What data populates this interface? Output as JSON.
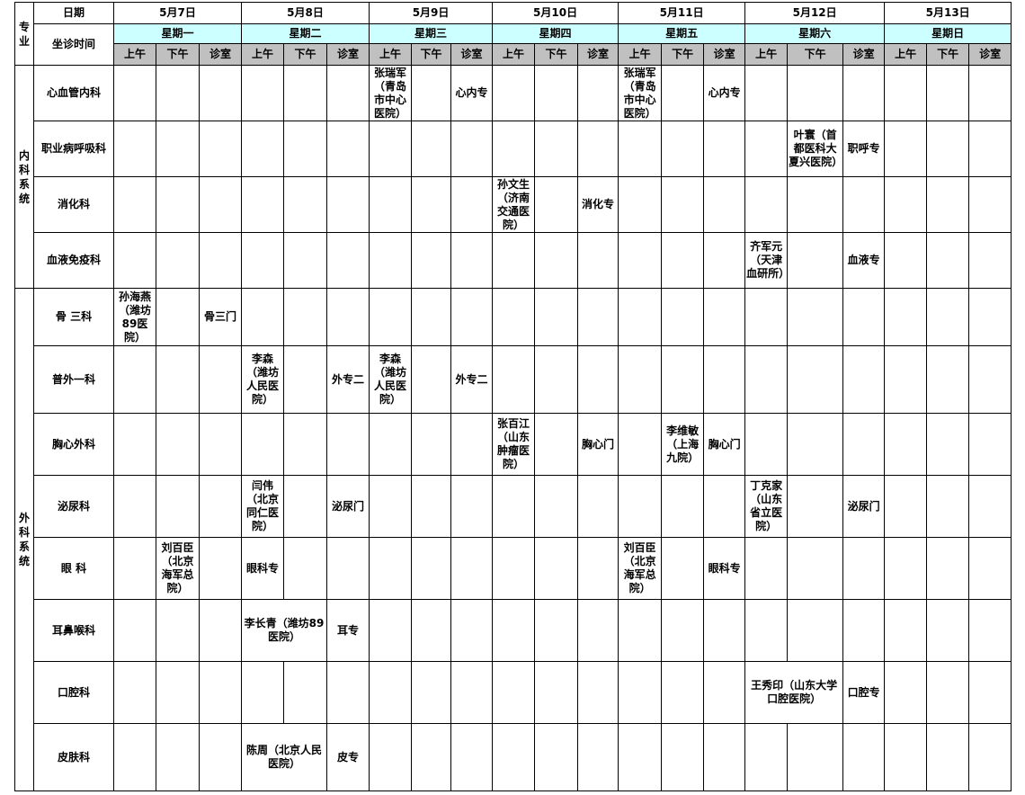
{
  "header": {
    "specialty": "专业",
    "date_label": "日期",
    "time_label": "坐诊时间",
    "subcols": [
      "上午",
      "下午",
      "诊室"
    ],
    "days": [
      {
        "date": "5月7日",
        "weekday": "星期一"
      },
      {
        "date": "5月8日",
        "weekday": "星期二"
      },
      {
        "date": "5月9日",
        "weekday": "星期三"
      },
      {
        "date": "5月10日",
        "weekday": "星期四"
      },
      {
        "date": "5月11日",
        "weekday": "星期五"
      },
      {
        "date": "5月12日",
        "weekday": "星期六"
      },
      {
        "date": "5月13日",
        "weekday": "星期日"
      }
    ]
  },
  "groups": [
    {
      "name": "内科系统",
      "depts": [
        {
          "name": "心血管内科",
          "cells": [
            "",
            "",
            "",
            "",
            "",
            "",
            "张瑞军（青岛市中心医院）",
            "",
            "心内专",
            "",
            "",
            "",
            "张瑞军（青岛市中心医院）",
            "",
            "心内专",
            "",
            "",
            "",
            "",
            "",
            ""
          ]
        },
        {
          "name": "职业病呼吸科",
          "cells": [
            "",
            "",
            "",
            "",
            "",
            "",
            "",
            "",
            "",
            "",
            "",
            "",
            "",
            "",
            "",
            "",
            "叶寰（首都医科大夏兴医院）",
            "职呼专",
            "",
            "",
            ""
          ]
        },
        {
          "name": "消化科",
          "cells": [
            "",
            "",
            "",
            "",
            "",
            "",
            "",
            "",
            "",
            "孙文生（济南交通医院）",
            "",
            "消化专",
            "",
            "",
            "",
            "",
            "",
            "",
            "",
            "",
            ""
          ]
        },
        {
          "name": "血液免疫科",
          "cells": [
            "",
            "",
            "",
            "",
            "",
            "",
            "",
            "",
            "",
            "",
            "",
            "",
            "",
            "",
            "",
            "齐军元（天津血研所）",
            "",
            "血液专",
            "",
            "",
            ""
          ]
        }
      ]
    },
    {
      "name": "外科系统",
      "depts": [
        {
          "name": "骨 三科",
          "cells": [
            "孙海燕（潍坊89医院）",
            "",
            "骨三门",
            "",
            "",
            "",
            "",
            "",
            "",
            "",
            "",
            "",
            "",
            "",
            "",
            "",
            "",
            "",
            "",
            "",
            ""
          ]
        },
        {
          "name": "普外一科",
          "cells": [
            "",
            "",
            "",
            "李森（潍坊人民医院）",
            "",
            "外专二",
            "李森（潍坊人民医院）",
            "",
            "外专二",
            "",
            "",
            "",
            "",
            "",
            "",
            "",
            "",
            "",
            "",
            "",
            ""
          ]
        },
        {
          "name": "胸心外科",
          "cells": [
            "",
            "",
            "",
            "",
            "",
            "",
            "",
            "",
            "",
            "张百江（山东肿瘤医院）",
            "",
            "胸心门",
            "",
            "李维敏（上海九院）",
            "胸心门",
            "",
            "",
            "",
            "",
            "",
            ""
          ]
        },
        {
          "name": "泌尿科",
          "cells": [
            "",
            "",
            "",
            "闫伟（北京同仁医院）",
            "",
            "泌尿门",
            "",
            "",
            "",
            "",
            "",
            "",
            "",
            "",
            "",
            "丁克家（山东省立医院）",
            "",
            "泌尿门",
            "",
            "",
            ""
          ]
        },
        {
          "name": "眼  科",
          "cells": [
            "",
            "刘百臣（北京海军总院）",
            "",
            "眼科专",
            "",
            "",
            "",
            "",
            "",
            "",
            "",
            "",
            "刘百臣（北京海军总院）",
            "",
            "眼科专",
            "",
            "",
            "",
            "",
            "",
            ""
          ]
        },
        {
          "name": "耳鼻喉科",
          "mergedIndex": 3,
          "merged": "李长青（潍坊89医院）",
          "cells": [
            "",
            "",
            "",
            "",
            "",
            "耳专",
            "",
            "",
            "",
            "",
            "",
            "",
            "",
            "",
            "",
            "",
            "",
            "",
            "",
            "",
            ""
          ]
        },
        {
          "name": "口腔科",
          "mergedIndex": 15,
          "merged": "王秀印（山东大学口腔医院）",
          "cells": [
            "",
            "",
            "",
            "",
            "",
            "",
            "",
            "",
            "",
            "",
            "",
            "",
            "",
            "",
            "",
            "",
            "",
            "口腔专",
            "",
            "",
            ""
          ]
        },
        {
          "name": "皮肤科",
          "mergedIndex": 3,
          "merged": "陈周（北京人民医院）",
          "cells": [
            "",
            "",
            "",
            "",
            "",
            "皮专",
            "",
            "",
            "",
            "",
            "",
            "",
            "",
            "",
            "",
            "",
            "",
            "",
            "",
            "",
            ""
          ]
        }
      ]
    }
  ]
}
